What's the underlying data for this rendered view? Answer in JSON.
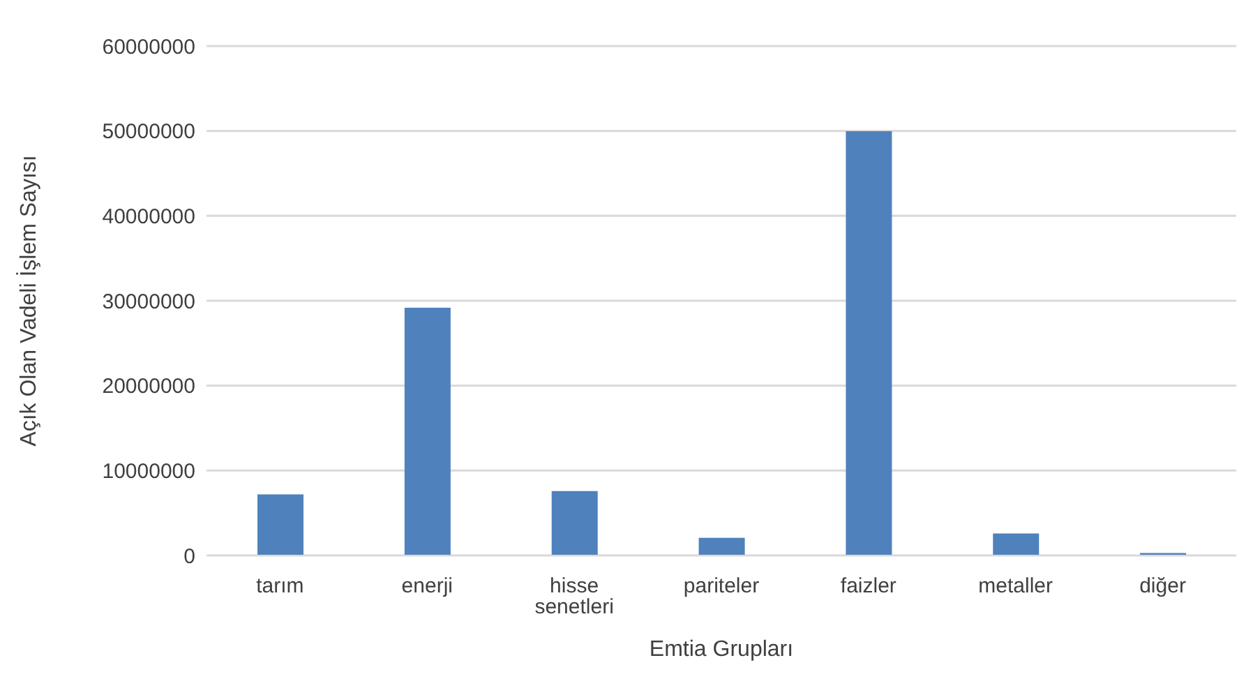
{
  "chart_data": {
    "type": "bar",
    "xlabel": "Emtia Grupları",
    "ylabel": "Açık Olan Vadeli İşlem Sayısı",
    "categories": [
      "tarım",
      "enerji",
      "hisse senetleri",
      "pariteler",
      "faizler",
      "metaller",
      "diğer"
    ],
    "values": [
      7100000,
      29100000,
      7500000,
      2000000,
      49900000,
      2500000,
      200000
    ],
    "color": "#4f81bd",
    "ylim": [
      0,
      60000000
    ],
    "yticks": [
      0,
      10000000,
      20000000,
      30000000,
      40000000,
      50000000,
      60000000
    ],
    "grid": "y",
    "legend": false
  }
}
